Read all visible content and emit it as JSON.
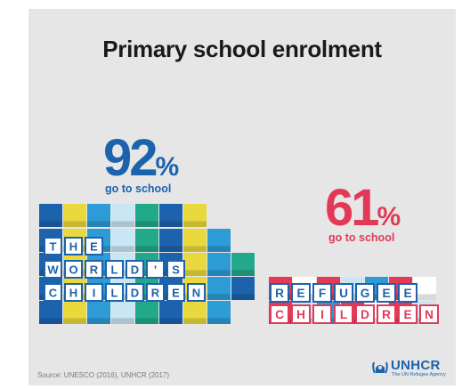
{
  "title": "Primary school enrolment",
  "source": "Source: UNESCO (2016), UNHCR (2017)",
  "logo": {
    "name": "UNHCR",
    "tagline": "The UN Refugee Agency"
  },
  "colors": {
    "world": "#1d62ad",
    "refugee": "#e23a56",
    "block_palette": [
      "#1d62ad",
      "#2c9bd6",
      "#21a98a",
      "#e9d93c",
      "#c9e6f5",
      "#e23a56",
      "#2f6fb8"
    ]
  },
  "chart_data": {
    "type": "bar",
    "categories": [
      "The world's children",
      "Refugee children"
    ],
    "values": [
      92,
      61
    ],
    "unit": "%",
    "captions": [
      "go to school",
      "go to school"
    ],
    "category_lettering": [
      [
        "THE",
        "WORLD'S",
        "CHILDREN"
      ],
      [
        "REFUGEE",
        "CHILDREN"
      ]
    ]
  }
}
